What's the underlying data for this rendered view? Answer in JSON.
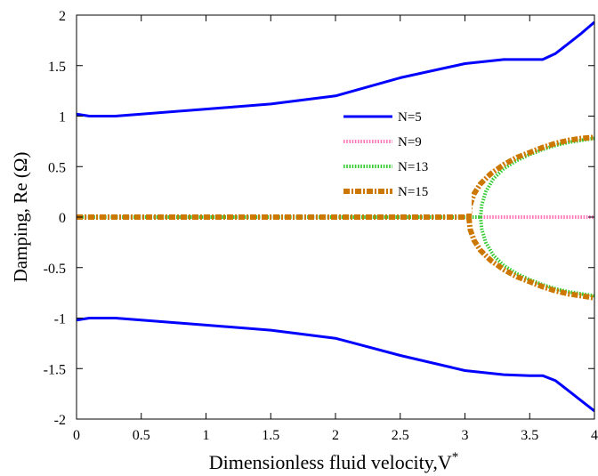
{
  "chart_data": {
    "type": "line",
    "title": "",
    "xlabel": "Dimensionless fluid velocity,V",
    "xlabel_sup": "*",
    "ylabel": "Damping, Re (Ω)",
    "xlim": [
      0,
      4
    ],
    "ylim": [
      -2,
      2
    ],
    "x_ticks": [
      0,
      0.5,
      1,
      1.5,
      2,
      2.5,
      3,
      3.5,
      4
    ],
    "x_tick_labels": [
      "0",
      "0.5",
      "1",
      "1.5",
      "2",
      "2.5",
      "3",
      "3.5",
      "4"
    ],
    "y_ticks": [
      -2,
      -1.5,
      -1,
      -0.5,
      0,
      0.5,
      1,
      1.5,
      2
    ],
    "y_tick_labels": [
      "-2",
      "-1.5",
      "-1",
      "-0.5",
      "0",
      "0.5",
      "1",
      "1.5",
      "2"
    ],
    "grid": false,
    "legend_position": "center-right",
    "series": [
      {
        "name": "N=5",
        "color": "#0000ff",
        "style": "solid",
        "branches": [
          {
            "x": [
              0,
              0.05,
              0.1,
              0.3,
              0.5,
              1.0,
              1.5,
              2.0,
              2.5,
              3.0,
              3.3,
              3.5,
              3.6,
              3.7,
              3.8,
              3.9,
              4.0
            ],
            "y": [
              1.02,
              1.01,
              1.0,
              1.0,
              1.02,
              1.07,
              1.12,
              1.2,
              1.38,
              1.52,
              1.56,
              1.56,
              1.56,
              1.62,
              1.72,
              1.82,
              1.93
            ]
          },
          {
            "x": [
              0,
              0.05,
              0.1,
              0.3,
              0.5,
              1.0,
              1.5,
              2.0,
              2.5,
              3.0,
              3.3,
              3.5,
              3.6,
              3.7,
              3.8,
              3.9,
              4.0
            ],
            "y": [
              -1.02,
              -1.01,
              -1.0,
              -1.0,
              -1.02,
              -1.07,
              -1.12,
              -1.2,
              -1.37,
              -1.52,
              -1.56,
              -1.57,
              -1.57,
              -1.62,
              -1.72,
              -1.82,
              -1.92
            ]
          }
        ]
      },
      {
        "name": "N=9",
        "color": "#ff77bb",
        "style": "dotted",
        "branches": [
          {
            "x": [
              0,
              4.0
            ],
            "y": [
              0,
              0
            ]
          }
        ]
      },
      {
        "name": "N=13",
        "color": "#33cc33",
        "style": "dotted",
        "branches": [
          {
            "x": [
              0,
              3.12
            ],
            "y": [
              0,
              0
            ]
          },
          {
            "x": [
              3.12,
              3.13,
              3.16,
              3.22,
              3.3,
              3.4,
              3.5,
              3.6,
              3.7,
              3.8,
              3.9,
              4.0
            ],
            "y": [
              0,
              0.12,
              0.25,
              0.38,
              0.48,
              0.56,
              0.62,
              0.67,
              0.71,
              0.74,
              0.76,
              0.78
            ]
          },
          {
            "x": [
              3.12,
              3.13,
              3.16,
              3.22,
              3.3,
              3.4,
              3.5,
              3.6,
              3.7,
              3.8,
              3.9,
              4.0
            ],
            "y": [
              0,
              -0.12,
              -0.25,
              -0.38,
              -0.48,
              -0.56,
              -0.62,
              -0.67,
              -0.71,
              -0.74,
              -0.76,
              -0.78
            ]
          }
        ]
      },
      {
        "name": "N=15",
        "color": "#cc7700",
        "style": "dashdot",
        "branches": [
          {
            "x": [
              0,
              3.03
            ],
            "y": [
              0,
              0
            ]
          },
          {
            "x": [
              3.03,
              3.04,
              3.07,
              3.12,
              3.2,
              3.3,
              3.4,
              3.5,
              3.6,
              3.7,
              3.8,
              3.9,
              4.0
            ],
            "y": [
              0,
              0.12,
              0.23,
              0.33,
              0.43,
              0.52,
              0.59,
              0.64,
              0.69,
              0.73,
              0.76,
              0.78,
              0.79
            ]
          },
          {
            "x": [
              3.03,
              3.04,
              3.07,
              3.12,
              3.2,
              3.3,
              3.4,
              3.5,
              3.6,
              3.7,
              3.8,
              3.9,
              4.0
            ],
            "y": [
              0,
              -0.12,
              -0.23,
              -0.33,
              -0.43,
              -0.52,
              -0.59,
              -0.64,
              -0.69,
              -0.73,
              -0.76,
              -0.78,
              -0.8
            ]
          }
        ]
      }
    ]
  }
}
